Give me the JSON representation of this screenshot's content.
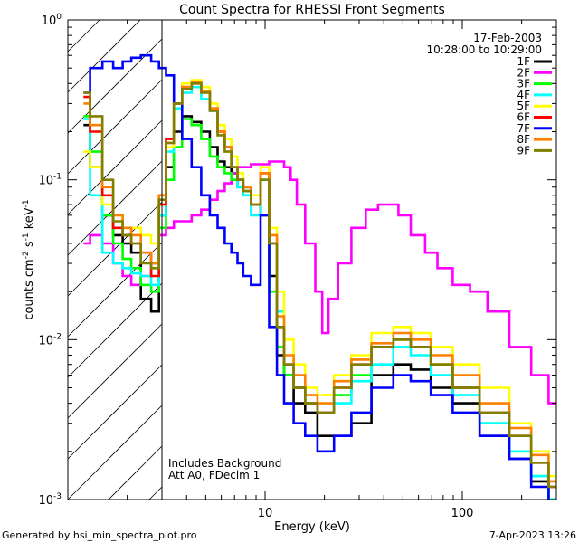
{
  "chart_data": {
    "type": "line",
    "title": "Count Spectra for RHESSI Front Segments",
    "xlabel": "Energy (keV)",
    "ylabel_main": "counts cm",
    "ylabel_sup1": "-2",
    "ylabel_mid": " s",
    "ylabel_sup2": "-1",
    "ylabel_tail": " keV",
    "ylabel_sup3": "-1",
    "xscale": "log",
    "yscale": "log",
    "xlim": [
      1.0,
      300.0
    ],
    "ylim": [
      0.001,
      1.0
    ],
    "x_tick_labels": [
      {
        "value": 10,
        "label": "10"
      },
      {
        "value": 100,
        "label": "100"
      }
    ],
    "y_tick_labels": [
      {
        "value": 1.0,
        "base": "10",
        "exp": "0"
      },
      {
        "value": 0.1,
        "base": "10",
        "exp": "-1"
      },
      {
        "value": 0.01,
        "base": "10",
        "exp": "-2"
      },
      {
        "value": 0.001,
        "base": "10",
        "exp": "-3"
      }
    ],
    "attenuator_cutoff_kev": 3.0,
    "date_label": "17-Feb-2003",
    "time_range_label": "10:28:00 to 10:29:00",
    "legend_position": "top-right",
    "annotation_line1": "Includes Background",
    "annotation_line2": "Att A0, FDecim 1",
    "footer_left": "Generated by hsi_min_spectra_plot.pro",
    "footer_right": "7-Apr-2023 13:26",
    "series": [
      {
        "name": "1F",
        "color": "#000000",
        "energies": [
          1.2,
          1.4,
          1.6,
          1.8,
          2.0,
          2.2,
          2.5,
          2.8,
          3.0,
          3.3,
          3.6,
          4.0,
          4.5,
          5.0,
          5.5,
          6.0,
          6.5,
          7.0,
          7.5,
          8.0,
          9.0,
          10.0,
          11.0,
          12.0,
          13.0,
          15.0,
          17.0,
          20.0,
          25.0,
          30.0,
          40.0,
          50.0,
          60.0,
          80.0,
          100.0,
          150.0,
          200.0,
          250.0,
          300.0
        ],
        "values": [
          0.22,
          0.12,
          0.06,
          0.045,
          0.04,
          0.035,
          0.018,
          0.015,
          0.06,
          0.12,
          0.2,
          0.25,
          0.23,
          0.2,
          0.16,
          0.13,
          0.12,
          0.11,
          0.1,
          0.09,
          0.07,
          0.06,
          0.025,
          0.008,
          0.006,
          0.004,
          0.0035,
          0.0025,
          0.0025,
          0.003,
          0.006,
          0.007,
          0.0065,
          0.005,
          0.004,
          0.0025,
          0.0018,
          0.0013,
          0.001
        ]
      },
      {
        "name": "2F",
        "color": "#ff00ff",
        "energies": [
          1.2,
          1.4,
          1.6,
          1.8,
          2.0,
          2.2,
          2.5,
          2.8,
          3.0,
          3.3,
          3.6,
          4.0,
          4.5,
          5.0,
          5.5,
          6.0,
          6.5,
          7.0,
          7.5,
          8.0,
          9.0,
          10.0,
          11.0,
          12.0,
          13.0,
          14.0,
          15.0,
          17.0,
          19.0,
          20.0,
          22.0,
          25.0,
          30.0,
          35.0,
          40.0,
          45.0,
          50.0,
          60.0,
          70.0,
          80.0,
          100.0,
          120.0,
          150.0,
          200.0,
          250.0,
          300.0
        ],
        "values": [
          0.04,
          0.045,
          0.04,
          0.03,
          0.025,
          0.022,
          0.025,
          0.03,
          0.045,
          0.05,
          0.055,
          0.055,
          0.06,
          0.065,
          0.075,
          0.085,
          0.095,
          0.11,
          0.12,
          0.12,
          0.125,
          0.125,
          0.13,
          0.13,
          0.12,
          0.1,
          0.07,
          0.04,
          0.02,
          0.011,
          0.018,
          0.03,
          0.05,
          0.065,
          0.07,
          0.07,
          0.06,
          0.045,
          0.035,
          0.028,
          0.022,
          0.02,
          0.015,
          0.009,
          0.006,
          0.004
        ]
      },
      {
        "name": "3F",
        "color": "#00ff00",
        "energies": [
          1.2,
          1.4,
          1.6,
          1.8,
          2.0,
          2.2,
          2.5,
          2.8,
          3.0,
          3.3,
          3.6,
          4.0,
          4.5,
          5.0,
          5.5,
          6.0,
          6.5,
          7.0,
          7.5,
          8.0,
          9.0,
          10.0,
          11.0,
          12.0,
          13.0,
          15.0,
          17.0,
          20.0,
          25.0,
          30.0,
          40.0,
          50.0,
          60.0,
          80.0,
          100.0,
          150.0,
          200.0,
          250.0,
          300.0
        ],
        "values": [
          0.25,
          0.15,
          0.06,
          0.04,
          0.032,
          0.028,
          0.022,
          0.02,
          0.05,
          0.1,
          0.16,
          0.24,
          0.22,
          0.18,
          0.14,
          0.12,
          0.11,
          0.1,
          0.09,
          0.085,
          0.07,
          0.1,
          0.02,
          0.009,
          0.006,
          0.005,
          0.004,
          0.0035,
          0.0045,
          0.006,
          0.009,
          0.01,
          0.009,
          0.007,
          0.005,
          0.003,
          0.002,
          0.0014,
          0.001
        ]
      },
      {
        "name": "4F",
        "color": "#00ffff",
        "energies": [
          1.2,
          1.4,
          1.6,
          1.8,
          2.0,
          2.2,
          2.5,
          2.8,
          3.0,
          3.3,
          3.6,
          4.0,
          4.5,
          5.0,
          5.5,
          6.0,
          6.5,
          7.0,
          7.5,
          8.0,
          9.0,
          10.0,
          11.0,
          12.0,
          13.0,
          15.0,
          17.0,
          20.0,
          25.0,
          30.0,
          40.0,
          50.0,
          60.0,
          80.0,
          100.0,
          150.0,
          200.0,
          250.0,
          300.0
        ],
        "values": [
          0.24,
          0.08,
          0.035,
          0.03,
          0.028,
          0.026,
          0.025,
          0.022,
          0.06,
          0.15,
          0.28,
          0.35,
          0.38,
          0.32,
          0.27,
          0.2,
          0.16,
          0.12,
          0.09,
          0.08,
          0.06,
          0.1,
          0.04,
          0.015,
          0.007,
          0.005,
          0.004,
          0.0035,
          0.004,
          0.0055,
          0.007,
          0.009,
          0.008,
          0.006,
          0.0045,
          0.003,
          0.002,
          0.0014,
          0.001
        ]
      },
      {
        "name": "5F",
        "color": "#ffff00",
        "energies": [
          1.2,
          1.4,
          1.6,
          1.8,
          2.0,
          2.2,
          2.5,
          2.8,
          3.0,
          3.3,
          3.6,
          4.0,
          4.5,
          5.0,
          5.5,
          6.0,
          6.5,
          7.0,
          7.5,
          8.0,
          9.0,
          10.0,
          11.0,
          12.0,
          13.0,
          15.0,
          17.0,
          20.0,
          25.0,
          30.0,
          40.0,
          50.0,
          60.0,
          80.0,
          100.0,
          150.0,
          200.0,
          250.0,
          300.0
        ],
        "values": [
          0.15,
          0.12,
          0.07,
          0.06,
          0.05,
          0.05,
          0.045,
          0.04,
          0.07,
          0.16,
          0.3,
          0.4,
          0.42,
          0.38,
          0.3,
          0.22,
          0.18,
          0.14,
          0.11,
          0.09,
          0.08,
          0.12,
          0.05,
          0.02,
          0.01,
          0.007,
          0.005,
          0.0045,
          0.006,
          0.008,
          0.011,
          0.012,
          0.011,
          0.009,
          0.007,
          0.005,
          0.003,
          0.002,
          0.0014
        ]
      },
      {
        "name": "6F",
        "color": "#ff0000",
        "energies": [
          1.2,
          1.4,
          1.6,
          1.8,
          2.0,
          2.2,
          2.5,
          2.8,
          3.0,
          3.3,
          3.6,
          4.0,
          4.5,
          5.0,
          5.5,
          6.0,
          6.5,
          7.0,
          7.5,
          8.0,
          9.0,
          10.0,
          11.0,
          12.0,
          13.0,
          15.0,
          17.0,
          20.0,
          25.0,
          30.0,
          40.0,
          50.0,
          60.0,
          80.0,
          100.0,
          150.0,
          200.0,
          250.0,
          300.0
        ],
        "values": [
          0.33,
          0.2,
          0.08,
          0.05,
          0.045,
          0.04,
          0.035,
          0.025,
          0.07,
          0.18,
          0.3,
          0.38,
          0.4,
          0.36,
          0.28,
          0.2,
          0.16,
          0.12,
          0.1,
          0.09,
          0.07,
          0.11,
          0.04,
          0.012,
          0.007,
          0.005,
          0.004,
          0.0035,
          0.005,
          0.007,
          0.009,
          0.01,
          0.009,
          0.007,
          0.005,
          0.0035,
          0.0025,
          0.0017,
          0.0012
        ]
      },
      {
        "name": "7F",
        "color": "#0000ff",
        "energies": [
          1.2,
          1.4,
          1.6,
          1.8,
          2.0,
          2.2,
          2.5,
          2.8,
          3.0,
          3.3,
          3.6,
          4.0,
          4.5,
          5.0,
          5.5,
          6.0,
          6.5,
          7.0,
          7.5,
          8.0,
          9.0,
          10.0,
          11.0,
          12.0,
          13.0,
          15.0,
          17.0,
          20.0,
          25.0,
          30.0,
          40.0,
          50.0,
          60.0,
          80.0,
          100.0,
          150.0,
          200.0,
          250.0,
          300.0
        ],
        "values": [
          0.35,
          0.5,
          0.55,
          0.5,
          0.55,
          0.58,
          0.6,
          0.55,
          0.5,
          0.45,
          0.3,
          0.18,
          0.12,
          0.08,
          0.06,
          0.05,
          0.04,
          0.035,
          0.03,
          0.025,
          0.022,
          0.06,
          0.012,
          0.006,
          0.004,
          0.003,
          0.0025,
          0.002,
          0.0025,
          0.0035,
          0.005,
          0.006,
          0.0055,
          0.0045,
          0.0035,
          0.0025,
          0.0018,
          0.0012,
          0.0009
        ]
      },
      {
        "name": "8F",
        "color": "#ff8000",
        "energies": [
          1.2,
          1.4,
          1.6,
          1.8,
          2.0,
          2.2,
          2.5,
          2.8,
          3.0,
          3.3,
          3.6,
          4.0,
          4.5,
          5.0,
          5.5,
          6.0,
          6.5,
          7.0,
          7.5,
          8.0,
          9.0,
          10.0,
          11.0,
          12.0,
          13.0,
          15.0,
          17.0,
          20.0,
          25.0,
          30.0,
          40.0,
          50.0,
          60.0,
          80.0,
          100.0,
          150.0,
          200.0,
          250.0,
          300.0
        ],
        "values": [
          0.3,
          0.22,
          0.09,
          0.06,
          0.05,
          0.045,
          0.035,
          0.03,
          0.08,
          0.17,
          0.3,
          0.38,
          0.41,
          0.36,
          0.28,
          0.2,
          0.16,
          0.12,
          0.1,
          0.09,
          0.07,
          0.11,
          0.045,
          0.014,
          0.008,
          0.006,
          0.0045,
          0.004,
          0.0055,
          0.0075,
          0.0095,
          0.011,
          0.01,
          0.008,
          0.006,
          0.004,
          0.0028,
          0.0019,
          0.0013
        ]
      },
      {
        "name": "9F",
        "color": "#808000",
        "energies": [
          1.2,
          1.4,
          1.6,
          1.8,
          2.0,
          2.2,
          2.5,
          2.8,
          3.0,
          3.3,
          3.6,
          4.0,
          4.5,
          5.0,
          5.5,
          6.0,
          6.5,
          7.0,
          7.5,
          8.0,
          9.0,
          10.0,
          11.0,
          12.0,
          13.0,
          15.0,
          17.0,
          20.0,
          25.0,
          30.0,
          40.0,
          50.0,
          60.0,
          80.0,
          100.0,
          150.0,
          200.0,
          250.0,
          300.0
        ],
        "values": [
          0.35,
          0.25,
          0.1,
          0.055,
          0.045,
          0.04,
          0.03,
          0.028,
          0.075,
          0.17,
          0.3,
          0.37,
          0.4,
          0.35,
          0.27,
          0.19,
          0.15,
          0.12,
          0.1,
          0.085,
          0.07,
          0.1,
          0.04,
          0.012,
          0.007,
          0.005,
          0.004,
          0.0035,
          0.005,
          0.007,
          0.009,
          0.01,
          0.009,
          0.007,
          0.005,
          0.0035,
          0.0025,
          0.0017,
          0.0012
        ]
      }
    ]
  }
}
